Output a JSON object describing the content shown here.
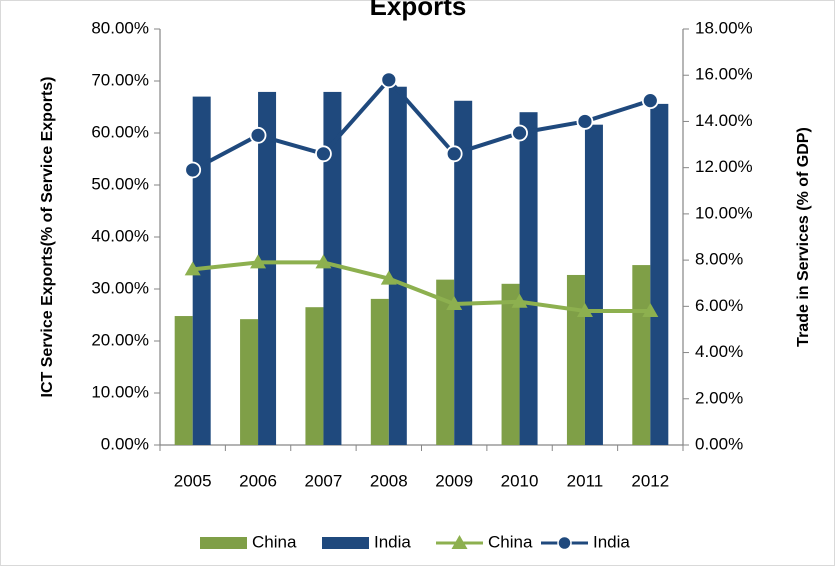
{
  "chart_data": {
    "type": "bar",
    "title": "Exports",
    "categories": [
      "2005",
      "2006",
      "2007",
      "2008",
      "2009",
      "2010",
      "2011",
      "2012"
    ],
    "ylabel": "ICT Service Exports(% of Service Exports)",
    "y2label": "Trade in Services (% of GDP)",
    "ylim": [
      0,
      80
    ],
    "y2lim": [
      0,
      18
    ],
    "yticks": [
      "0.00%",
      "10.00%",
      "20.00%",
      "30.00%",
      "40.00%",
      "50.00%",
      "60.00%",
      "70.00%",
      "80.00%"
    ],
    "y2ticks": [
      "0.00%",
      "2.00%",
      "4.00%",
      "6.00%",
      "8.00%",
      "10.00%",
      "12.00%",
      "14.00%",
      "16.00%",
      "18.00%"
    ],
    "grid": false,
    "legend_position": "bottom",
    "series": [
      {
        "name": "China",
        "kind": "bar",
        "axis": "left",
        "color": "#7f9f47",
        "values": [
          24.8,
          24.2,
          26.5,
          28.1,
          31.8,
          31.0,
          32.7,
          34.6
        ]
      },
      {
        "name": "India",
        "kind": "bar",
        "axis": "left",
        "color": "#1f497d",
        "values": [
          67.0,
          67.9,
          67.9,
          68.9,
          66.2,
          64.0,
          61.6,
          65.6
        ]
      },
      {
        "name": "China",
        "kind": "line",
        "marker": "triangle",
        "axis": "right",
        "color": "#8db04f",
        "values": [
          7.6,
          7.9,
          7.9,
          7.2,
          6.1,
          6.2,
          5.8,
          5.8
        ]
      },
      {
        "name": "India",
        "kind": "line",
        "marker": "circle",
        "axis": "right",
        "color": "#1f497d",
        "values": [
          11.9,
          13.4,
          12.6,
          15.8,
          12.6,
          13.5,
          14.0,
          14.9
        ]
      }
    ]
  }
}
